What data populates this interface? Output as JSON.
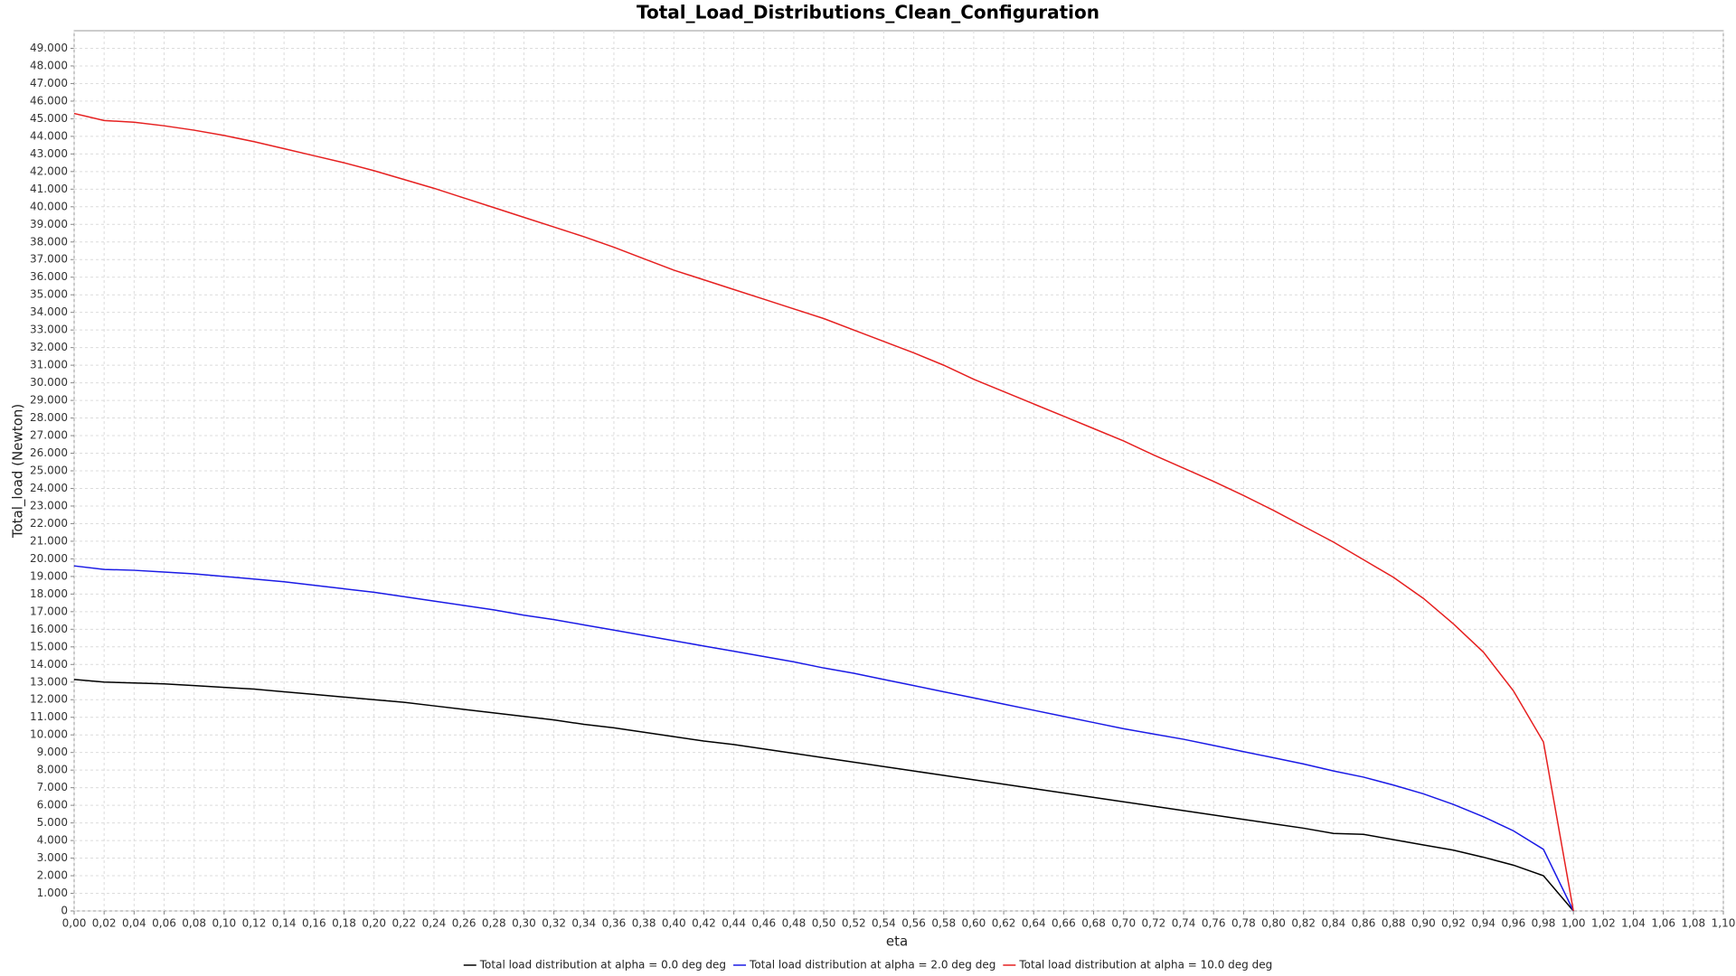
{
  "chart_data": {
    "type": "line",
    "title": "Total_Load_Distributions_Clean_Configuration",
    "x_label": "eta",
    "y_label": "Total_load (Newton)",
    "grid": true,
    "legend": "bottom",
    "xlim": [
      0,
      1.1
    ],
    "ylim": [
      0,
      50000
    ],
    "x": [
      0,
      0.02,
      0.04,
      0.06,
      0.08,
      0.1,
      0.12,
      0.14,
      0.16,
      0.18,
      0.2,
      0.22,
      0.24,
      0.26,
      0.28,
      0.3,
      0.32,
      0.34,
      0.36,
      0.38,
      0.4,
      0.42,
      0.44,
      0.46,
      0.48,
      0.5,
      0.52,
      0.54,
      0.56,
      0.58,
      0.6,
      0.62,
      0.64,
      0.66,
      0.68,
      0.7,
      0.72,
      0.74,
      0.76,
      0.78,
      0.8,
      0.82,
      0.84,
      0.86,
      0.88,
      0.9,
      0.92,
      0.94,
      0.96,
      0.98,
      1
    ],
    "series": [
      {
        "name": "Total load distribution at alpha = 0.0 deg deg",
        "color": "#000000",
        "values": [
          13150,
          13000,
          12950,
          12900,
          12800,
          12700,
          12600,
          12450,
          12300,
          12150,
          12000,
          11850,
          11650,
          11450,
          11250,
          11050,
          10850,
          10600,
          10400,
          10150,
          9900,
          9650,
          9450,
          9200,
          8950,
          8700,
          8450,
          8200,
          7950,
          7700,
          7450,
          7200,
          6950,
          6700,
          6450,
          6200,
          5950,
          5700,
          5450,
          5200,
          4950,
          4700,
          4400,
          4350,
          4050,
          3750,
          3450,
          3050,
          2600,
          2000,
          0
        ]
      },
      {
        "name": "Total load distribution at alpha = 2.0 deg deg",
        "color": "#1a1ae6",
        "values": [
          19600,
          19400,
          19350,
          19250,
          19150,
          19000,
          18850,
          18700,
          18500,
          18300,
          18100,
          17850,
          17600,
          17350,
          17100,
          16800,
          16550,
          16250,
          15950,
          15650,
          15350,
          15050,
          14750,
          14450,
          14150,
          13800,
          13500,
          13150,
          12800,
          12450,
          12100,
          11750,
          11400,
          11050,
          10700,
          10350,
          10050,
          9750,
          9400,
          9050,
          8700,
          8350,
          7950,
          7600,
          7150,
          6650,
          6050,
          5350,
          4550,
          3500,
          0
        ]
      },
      {
        "name": "Total load distribution at alpha = 10.0 deg deg",
        "color": "#e62020",
        "values": [
          45300,
          44900,
          44800,
          44600,
          44350,
          44050,
          43700,
          43300,
          42900,
          42500,
          42050,
          41550,
          41050,
          40500,
          39950,
          39400,
          38850,
          38300,
          37700,
          37050,
          36400,
          35850,
          35300,
          34750,
          34200,
          33650,
          33000,
          32350,
          31700,
          31000,
          30200,
          29500,
          28800,
          28100,
          27400,
          26700,
          25900,
          25150,
          24400,
          23600,
          22750,
          21850,
          20950,
          19950,
          18950,
          17750,
          16300,
          14700,
          12500,
          9600,
          0
        ]
      }
    ],
    "xticks": [
      {
        "value": 0,
        "label": "0,00"
      },
      {
        "value": 0.02,
        "label": "0,02"
      },
      {
        "value": 0.04,
        "label": "0,04"
      },
      {
        "value": 0.06,
        "label": "0,06"
      },
      {
        "value": 0.08,
        "label": "0,08"
      },
      {
        "value": 0.1,
        "label": "0,10"
      },
      {
        "value": 0.12,
        "label": "0,12"
      },
      {
        "value": 0.14,
        "label": "0,14"
      },
      {
        "value": 0.16,
        "label": "0,16"
      },
      {
        "value": 0.18,
        "label": "0,18"
      },
      {
        "value": 0.2,
        "label": "0,20"
      },
      {
        "value": 0.22,
        "label": "0,22"
      },
      {
        "value": 0.24,
        "label": "0,24"
      },
      {
        "value": 0.26,
        "label": "0,26"
      },
      {
        "value": 0.28,
        "label": "0,28"
      },
      {
        "value": 0.3,
        "label": "0,30"
      },
      {
        "value": 0.32,
        "label": "0,32"
      },
      {
        "value": 0.34,
        "label": "0,34"
      },
      {
        "value": 0.36,
        "label": "0,36"
      },
      {
        "value": 0.38,
        "label": "0,38"
      },
      {
        "value": 0.4,
        "label": "0,40"
      },
      {
        "value": 0.42,
        "label": "0,42"
      },
      {
        "value": 0.44,
        "label": "0,44"
      },
      {
        "value": 0.46,
        "label": "0,46"
      },
      {
        "value": 0.48,
        "label": "0,48"
      },
      {
        "value": 0.5,
        "label": "0,50"
      },
      {
        "value": 0.52,
        "label": "0,52"
      },
      {
        "value": 0.54,
        "label": "0,54"
      },
      {
        "value": 0.56,
        "label": "0,56"
      },
      {
        "value": 0.58,
        "label": "0,58"
      },
      {
        "value": 0.6,
        "label": "0,60"
      },
      {
        "value": 0.62,
        "label": "0,62"
      },
      {
        "value": 0.64,
        "label": "0,64"
      },
      {
        "value": 0.66,
        "label": "0,66"
      },
      {
        "value": 0.68,
        "label": "0,68"
      },
      {
        "value": 0.7,
        "label": "0,70"
      },
      {
        "value": 0.72,
        "label": "0,72"
      },
      {
        "value": 0.74,
        "label": "0,74"
      },
      {
        "value": 0.76,
        "label": "0,76"
      },
      {
        "value": 0.78,
        "label": "0,78"
      },
      {
        "value": 0.8,
        "label": "0,80"
      },
      {
        "value": 0.82,
        "label": "0,82"
      },
      {
        "value": 0.84,
        "label": "0,84"
      },
      {
        "value": 0.86,
        "label": "0,86"
      },
      {
        "value": 0.88,
        "label": "0,88"
      },
      {
        "value": 0.9,
        "label": "0,90"
      },
      {
        "value": 0.92,
        "label": "0,92"
      },
      {
        "value": 0.94,
        "label": "0,94"
      },
      {
        "value": 0.96,
        "label": "0,96"
      },
      {
        "value": 0.98,
        "label": "0,98"
      },
      {
        "value": 1,
        "label": "1,00"
      },
      {
        "value": 1.02,
        "label": "1,02"
      },
      {
        "value": 1.04,
        "label": "1,04"
      },
      {
        "value": 1.06,
        "label": "1,06"
      },
      {
        "value": 1.08,
        "label": "1,08"
      },
      {
        "value": 1.1,
        "label": "1,10"
      }
    ],
    "yticks": [
      0,
      {
        "value": 1000,
        "label": "1.000"
      },
      {
        "value": 2000,
        "label": "2.000"
      },
      {
        "value": 3000,
        "label": "3.000"
      },
      {
        "value": 4000,
        "label": "4.000"
      },
      {
        "value": 5000,
        "label": "5.000"
      },
      {
        "value": 6000,
        "label": "6.000"
      },
      {
        "value": 7000,
        "label": "7.000"
      },
      {
        "value": 8000,
        "label": "8.000"
      },
      {
        "value": 9000,
        "label": "9.000"
      },
      {
        "value": 10000,
        "label": "10.000"
      },
      {
        "value": 11000,
        "label": "11.000"
      },
      {
        "value": 12000,
        "label": "12.000"
      },
      {
        "value": 13000,
        "label": "13.000"
      },
      {
        "value": 14000,
        "label": "14.000"
      },
      {
        "value": 15000,
        "label": "15.000"
      },
      {
        "value": 16000,
        "label": "16.000"
      },
      {
        "value": 17000,
        "label": "17.000"
      },
      {
        "value": 18000,
        "label": "18.000"
      },
      {
        "value": 19000,
        "label": "19.000"
      },
      {
        "value": 20000,
        "label": "20.000"
      },
      {
        "value": 21000,
        "label": "21.000"
      },
      {
        "value": 22000,
        "label": "22.000"
      },
      {
        "value": 23000,
        "label": "23.000"
      },
      {
        "value": 24000,
        "label": "24.000"
      },
      {
        "value": 25000,
        "label": "25.000"
      },
      {
        "value": 26000,
        "label": "26.000"
      },
      {
        "value": 27000,
        "label": "27.000"
      },
      {
        "value": 28000,
        "label": "28.000"
      },
      {
        "value": 29000,
        "label": "29.000"
      },
      {
        "value": 30000,
        "label": "30.000"
      },
      {
        "value": 31000,
        "label": "31.000"
      },
      {
        "value": 32000,
        "label": "32.000"
      },
      {
        "value": 33000,
        "label": "33.000"
      },
      {
        "value": 34000,
        "label": "34.000"
      },
      {
        "value": 35000,
        "label": "35.000"
      },
      {
        "value": 36000,
        "label": "36.000"
      },
      {
        "value": 37000,
        "label": "37.000"
      },
      {
        "value": 38000,
        "label": "38.000"
      },
      {
        "value": 39000,
        "label": "39.000"
      },
      {
        "value": 40000,
        "label": "40.000"
      },
      {
        "value": 41000,
        "label": "41.000"
      },
      {
        "value": 42000,
        "label": "42.000"
      },
      {
        "value": 43000,
        "label": "43.000"
      },
      {
        "value": 44000,
        "label": "44.000"
      },
      {
        "value": 45000,
        "label": "45.000"
      },
      {
        "value": 46000,
        "label": "46.000"
      },
      {
        "value": 47000,
        "label": "47.000"
      },
      {
        "value": 48000,
        "label": "48.000"
      },
      {
        "value": 49000,
        "label": "49.000"
      }
    ]
  }
}
